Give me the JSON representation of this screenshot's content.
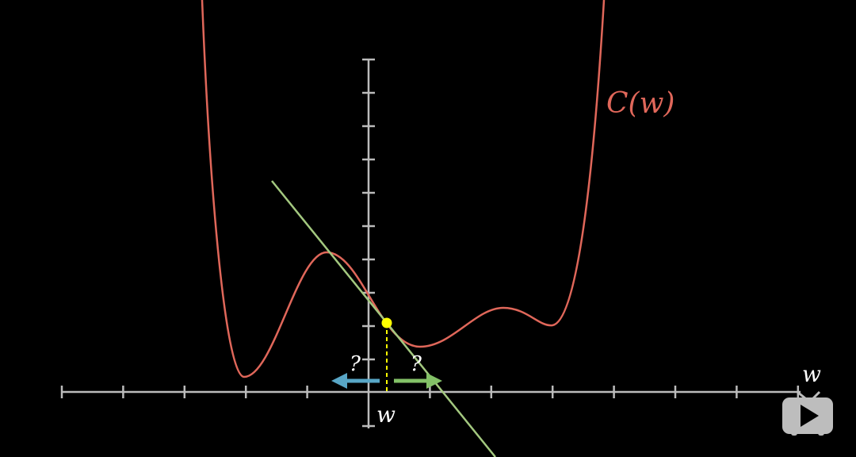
{
  "labels": {
    "curve": "C(w)",
    "x_axis": "w",
    "point": "w",
    "left_question": "?",
    "right_question": "?"
  },
  "colors": {
    "background": "#000000",
    "curve": "#e0675a",
    "tangent": "#a3c87f",
    "point": "#ffff00",
    "left_arrow": "#58a6c6",
    "right_arrow": "#83c167",
    "axes": "#bbbbbb"
  },
  "watermark": {
    "logo": "bilibili-tv-icon"
  }
}
